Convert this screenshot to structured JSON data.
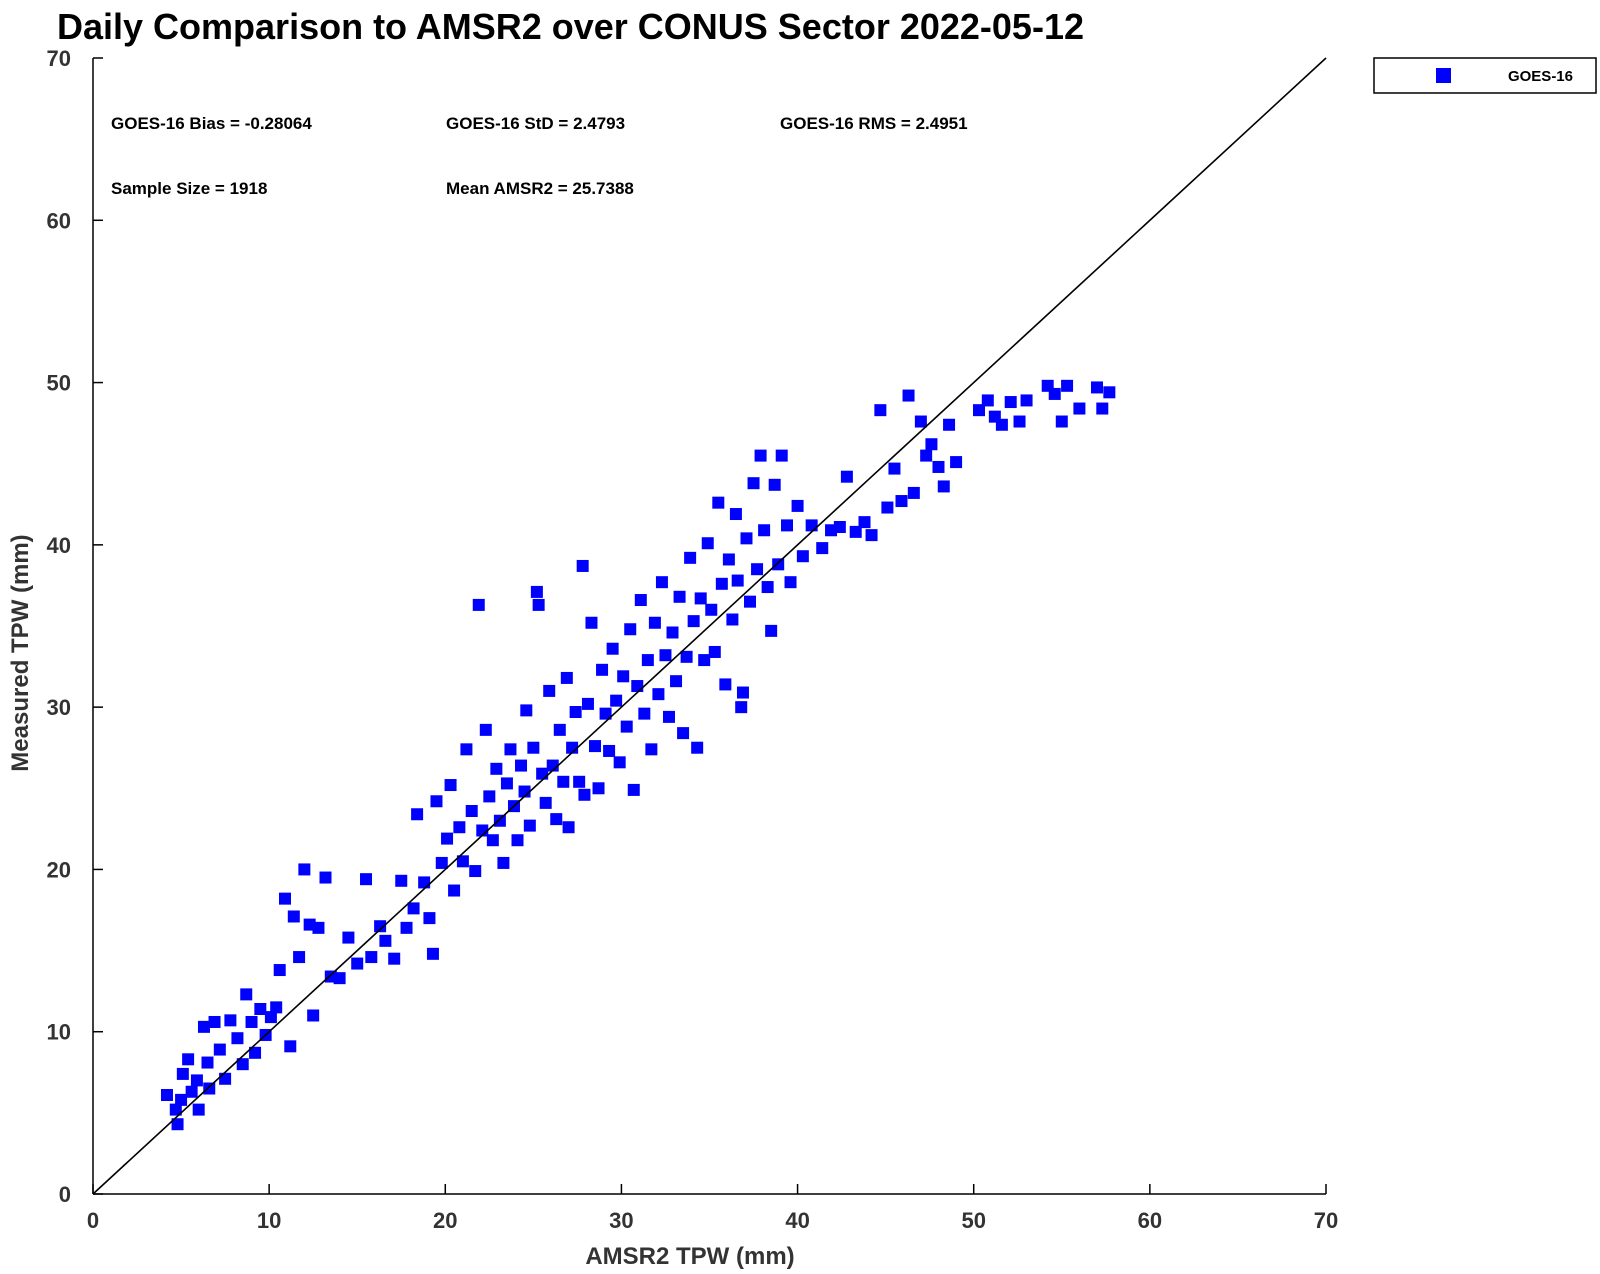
{
  "chart_data": {
    "type": "scatter",
    "title": "Daily Comparison to AMSR2 over CONUS Sector 2022-05-12",
    "xlabel": "AMSR2 TPW (mm)",
    "ylabel": "Measured TPW (mm)",
    "xlim": [
      0,
      70
    ],
    "ylim": [
      0,
      70
    ],
    "xticks": [
      "0",
      "10",
      "20",
      "30",
      "40",
      "50",
      "60",
      "70"
    ],
    "yticks": [
      "0",
      "10",
      "20",
      "30",
      "40",
      "50",
      "60",
      "70"
    ],
    "grid": false,
    "legend_position": "top-right",
    "reference_line": "y = x",
    "stats": [
      "GOES-16 Bias = -0.28064",
      "GOES-16 StD = 2.4793",
      "GOES-16 RMS = 2.4951",
      "Sample Size = 1918",
      "Mean AMSR2 = 25.7388"
    ],
    "series": [
      {
        "name": "GOES-16",
        "color": "#0000ff",
        "marker": "square",
        "points": [
          [
            4.2,
            6.1
          ],
          [
            4.7,
            5.2
          ],
          [
            4.8,
            4.3
          ],
          [
            5.0,
            5.8
          ],
          [
            5.1,
            7.4
          ],
          [
            5.4,
            8.3
          ],
          [
            5.6,
            6.3
          ],
          [
            5.9,
            7.0
          ],
          [
            6.0,
            5.2
          ],
          [
            6.3,
            10.3
          ],
          [
            6.5,
            8.1
          ],
          [
            6.6,
            6.5
          ],
          [
            6.9,
            10.6
          ],
          [
            7.2,
            8.9
          ],
          [
            7.5,
            7.1
          ],
          [
            7.8,
            10.7
          ],
          [
            8.2,
            9.6
          ],
          [
            8.5,
            8.0
          ],
          [
            8.7,
            12.3
          ],
          [
            9.0,
            10.6
          ],
          [
            9.2,
            8.7
          ],
          [
            9.5,
            11.4
          ],
          [
            9.8,
            9.8
          ],
          [
            10.1,
            10.9
          ],
          [
            10.4,
            11.5
          ],
          [
            10.6,
            13.8
          ],
          [
            10.9,
            18.2
          ],
          [
            11.2,
            9.1
          ],
          [
            11.4,
            17.1
          ],
          [
            11.7,
            14.6
          ],
          [
            12.0,
            20.0
          ],
          [
            12.3,
            16.6
          ],
          [
            12.5,
            11.0
          ],
          [
            12.8,
            16.4
          ],
          [
            13.2,
            19.5
          ],
          [
            13.5,
            13.4
          ],
          [
            14.0,
            13.3
          ],
          [
            14.5,
            15.8
          ],
          [
            15.0,
            14.2
          ],
          [
            15.5,
            19.4
          ],
          [
            15.8,
            14.6
          ],
          [
            16.3,
            16.5
          ],
          [
            16.6,
            15.6
          ],
          [
            17.1,
            14.5
          ],
          [
            17.5,
            19.3
          ],
          [
            17.8,
            16.4
          ],
          [
            18.2,
            17.6
          ],
          [
            18.4,
            23.4
          ],
          [
            18.8,
            19.2
          ],
          [
            19.1,
            17.0
          ],
          [
            19.3,
            14.8
          ],
          [
            19.5,
            24.2
          ],
          [
            19.8,
            20.4
          ],
          [
            20.1,
            21.9
          ],
          [
            20.3,
            25.2
          ],
          [
            20.5,
            18.7
          ],
          [
            20.8,
            22.6
          ],
          [
            21.0,
            20.5
          ],
          [
            21.2,
            27.4
          ],
          [
            21.5,
            23.6
          ],
          [
            21.7,
            19.9
          ],
          [
            21.9,
            36.3
          ],
          [
            22.1,
            22.4
          ],
          [
            22.3,
            28.6
          ],
          [
            22.5,
            24.5
          ],
          [
            22.7,
            21.8
          ],
          [
            22.9,
            26.2
          ],
          [
            23.1,
            23.0
          ],
          [
            23.3,
            20.4
          ],
          [
            23.5,
            25.3
          ],
          [
            23.7,
            27.4
          ],
          [
            23.9,
            23.9
          ],
          [
            24.1,
            21.8
          ],
          [
            24.3,
            26.4
          ],
          [
            24.5,
            24.8
          ],
          [
            24.6,
            29.8
          ],
          [
            24.8,
            22.7
          ],
          [
            25.0,
            27.5
          ],
          [
            25.2,
            37.1
          ],
          [
            25.3,
            36.3
          ],
          [
            25.5,
            25.9
          ],
          [
            25.7,
            24.1
          ],
          [
            25.9,
            31.0
          ],
          [
            26.1,
            26.4
          ],
          [
            26.3,
            23.1
          ],
          [
            26.5,
            28.6
          ],
          [
            26.7,
            25.4
          ],
          [
            26.9,
            31.8
          ],
          [
            27.0,
            22.6
          ],
          [
            27.2,
            27.5
          ],
          [
            27.4,
            29.7
          ],
          [
            27.6,
            25.4
          ],
          [
            27.8,
            38.7
          ],
          [
            27.9,
            24.6
          ],
          [
            28.1,
            30.2
          ],
          [
            28.3,
            35.2
          ],
          [
            28.5,
            27.6
          ],
          [
            28.7,
            25.0
          ],
          [
            28.9,
            32.3
          ],
          [
            29.1,
            29.6
          ],
          [
            29.3,
            27.3
          ],
          [
            29.5,
            33.6
          ],
          [
            29.7,
            30.4
          ],
          [
            29.9,
            26.6
          ],
          [
            30.1,
            31.9
          ],
          [
            30.3,
            28.8
          ],
          [
            30.5,
            34.8
          ],
          [
            30.7,
            24.9
          ],
          [
            30.9,
            31.3
          ],
          [
            31.1,
            36.6
          ],
          [
            31.3,
            29.6
          ],
          [
            31.5,
            32.9
          ],
          [
            31.7,
            27.4
          ],
          [
            31.9,
            35.2
          ],
          [
            32.1,
            30.8
          ],
          [
            32.3,
            37.7
          ],
          [
            32.5,
            33.2
          ],
          [
            32.7,
            29.4
          ],
          [
            32.9,
            34.6
          ],
          [
            33.1,
            31.6
          ],
          [
            33.3,
            36.8
          ],
          [
            33.5,
            28.4
          ],
          [
            33.7,
            33.1
          ],
          [
            33.9,
            39.2
          ],
          [
            34.1,
            35.3
          ],
          [
            34.3,
            27.5
          ],
          [
            34.5,
            36.7
          ],
          [
            34.7,
            32.9
          ],
          [
            34.9,
            40.1
          ],
          [
            35.1,
            36.0
          ],
          [
            35.3,
            33.4
          ],
          [
            35.5,
            42.6
          ],
          [
            35.7,
            37.6
          ],
          [
            35.9,
            31.4
          ],
          [
            36.1,
            39.1
          ],
          [
            36.3,
            35.4
          ],
          [
            36.5,
            41.9
          ],
          [
            36.6,
            37.8
          ],
          [
            36.8,
            30.0
          ],
          [
            36.9,
            30.9
          ],
          [
            37.1,
            40.4
          ],
          [
            37.3,
            36.5
          ],
          [
            37.5,
            43.8
          ],
          [
            37.7,
            38.5
          ],
          [
            37.9,
            45.5
          ],
          [
            38.1,
            40.9
          ],
          [
            38.3,
            37.4
          ],
          [
            38.5,
            34.7
          ],
          [
            38.7,
            43.7
          ],
          [
            38.9,
            38.8
          ],
          [
            39.1,
            45.5
          ],
          [
            39.4,
            41.2
          ],
          [
            39.6,
            37.7
          ],
          [
            40.0,
            42.4
          ],
          [
            40.3,
            39.3
          ],
          [
            40.8,
            41.2
          ],
          [
            41.4,
            39.8
          ],
          [
            41.9,
            40.9
          ],
          [
            42.4,
            41.1
          ],
          [
            42.8,
            44.2
          ],
          [
            43.3,
            40.8
          ],
          [
            43.8,
            41.4
          ],
          [
            44.2,
            40.6
          ],
          [
            44.7,
            48.3
          ],
          [
            45.1,
            42.3
          ],
          [
            45.5,
            44.7
          ],
          [
            45.9,
            42.7
          ],
          [
            46.3,
            49.2
          ],
          [
            46.6,
            43.2
          ],
          [
            47.0,
            47.6
          ],
          [
            47.3,
            45.5
          ],
          [
            47.6,
            46.2
          ],
          [
            48.0,
            44.8
          ],
          [
            48.3,
            43.6
          ],
          [
            48.6,
            47.4
          ],
          [
            49.0,
            45.1
          ],
          [
            50.3,
            48.3
          ],
          [
            50.8,
            48.9
          ],
          [
            51.2,
            47.9
          ],
          [
            51.6,
            47.4
          ],
          [
            52.1,
            48.8
          ],
          [
            52.6,
            47.6
          ],
          [
            53.0,
            48.9
          ],
          [
            54.2,
            49.8
          ],
          [
            54.6,
            49.3
          ],
          [
            55.0,
            47.6
          ],
          [
            55.3,
            49.8
          ],
          [
            56.0,
            48.4
          ],
          [
            57.0,
            49.7
          ],
          [
            57.3,
            48.4
          ],
          [
            57.7,
            49.4
          ]
        ]
      }
    ]
  }
}
